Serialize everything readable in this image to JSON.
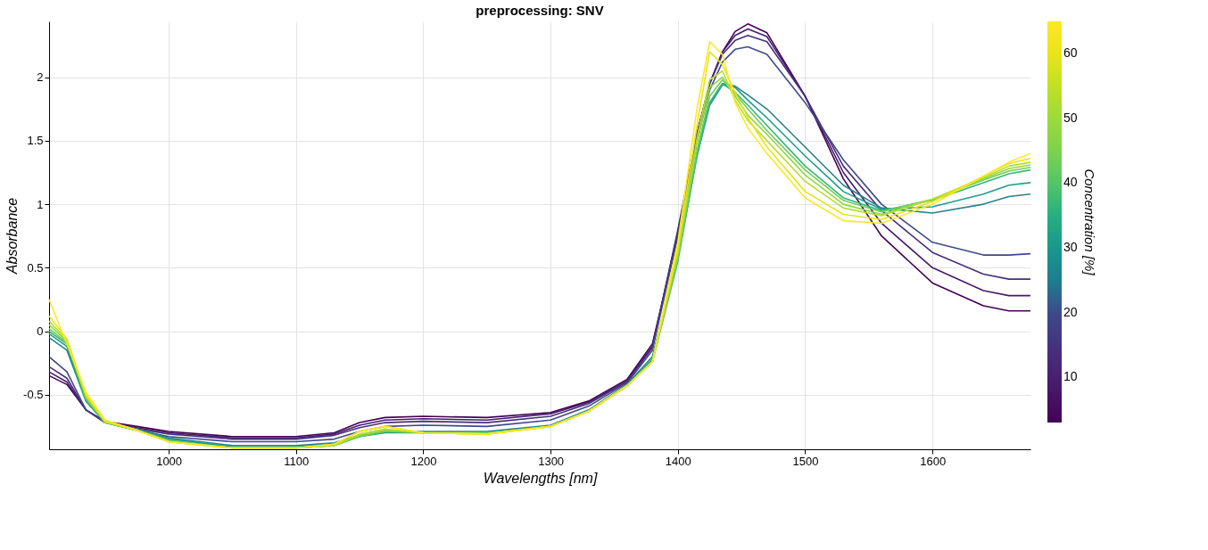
{
  "chart_data": {
    "type": "line",
    "title": "preprocessing: SNV",
    "xlabel": "Wavelengths [nm]",
    "ylabel": "Absorbance",
    "clabel": "Concentration [%]",
    "x": [
      906,
      920,
      935,
      950,
      975,
      1000,
      1050,
      1100,
      1130,
      1150,
      1170,
      1200,
      1250,
      1300,
      1330,
      1360,
      1380,
      1400,
      1415,
      1425,
      1435,
      1445,
      1455,
      1470,
      1500,
      1530,
      1560,
      1600,
      1640,
      1660,
      1677
    ],
    "xlim": [
      906,
      1677
    ],
    "xticks": [
      1000,
      1100,
      1200,
      1300,
      1400,
      1500,
      1600
    ],
    "ylim": [
      -0.93,
      2.44
    ],
    "yticks": [
      -0.5,
      0,
      0.5,
      1,
      1.5,
      2
    ],
    "clim": [
      3,
      65
    ],
    "cticks": [
      10,
      20,
      30,
      40,
      50,
      60
    ],
    "grid": true,
    "marker": "none",
    "line_style": "solid",
    "series": [
      {
        "color": "#440154",
        "values": [
          -0.35,
          -0.42,
          -0.62,
          -0.71,
          -0.75,
          -0.79,
          -0.83,
          -0.83,
          -0.8,
          -0.72,
          -0.68,
          -0.67,
          -0.68,
          -0.64,
          -0.55,
          -0.38,
          -0.1,
          0.75,
          1.55,
          1.95,
          2.2,
          2.36,
          2.42,
          2.35,
          1.85,
          1.2,
          0.75,
          0.38,
          0.2,
          0.16,
          0.16
        ]
      },
      {
        "color": "#481a6c",
        "values": [
          -0.32,
          -0.4,
          -0.62,
          -0.71,
          -0.76,
          -0.8,
          -0.84,
          -0.84,
          -0.81,
          -0.74,
          -0.7,
          -0.69,
          -0.7,
          -0.65,
          -0.56,
          -0.39,
          -0.12,
          0.78,
          1.55,
          1.95,
          2.2,
          2.33,
          2.38,
          2.32,
          1.85,
          1.25,
          0.85,
          0.5,
          0.32,
          0.28,
          0.28
        ]
      },
      {
        "color": "#472f7d",
        "values": [
          -0.28,
          -0.37,
          -0.62,
          -0.72,
          -0.77,
          -0.81,
          -0.85,
          -0.85,
          -0.82,
          -0.76,
          -0.72,
          -0.71,
          -0.72,
          -0.67,
          -0.57,
          -0.4,
          -0.13,
          0.8,
          1.55,
          1.95,
          2.18,
          2.29,
          2.33,
          2.28,
          1.85,
          1.3,
          0.95,
          0.62,
          0.45,
          0.41,
          0.41
        ]
      },
      {
        "color": "#3e4a89",
        "values": [
          -0.2,
          -0.32,
          -0.62,
          -0.72,
          -0.78,
          -0.83,
          -0.87,
          -0.87,
          -0.85,
          -0.79,
          -0.75,
          -0.74,
          -0.75,
          -0.7,
          -0.59,
          -0.41,
          -0.15,
          0.75,
          1.5,
          1.9,
          2.12,
          2.22,
          2.24,
          2.18,
          1.8,
          1.35,
          1.0,
          0.7,
          0.6,
          0.6,
          0.61
        ]
      },
      {
        "color": "#26828e",
        "values": [
          -0.05,
          -0.15,
          -0.55,
          -0.72,
          -0.77,
          -0.84,
          -0.9,
          -0.9,
          -0.88,
          -0.82,
          -0.79,
          -0.79,
          -0.79,
          -0.74,
          -0.62,
          -0.42,
          -0.2,
          0.6,
          1.4,
          1.8,
          1.95,
          1.93,
          1.86,
          1.75,
          1.45,
          1.15,
          0.97,
          0.93,
          1.0,
          1.06,
          1.08
        ]
      },
      {
        "color": "#1f9e89",
        "values": [
          -0.02,
          -0.12,
          -0.55,
          -0.72,
          -0.78,
          -0.85,
          -0.91,
          -0.91,
          -0.89,
          -0.83,
          -0.8,
          -0.8,
          -0.8,
          -0.75,
          -0.63,
          -0.43,
          -0.22,
          0.58,
          1.38,
          1.78,
          1.94,
          1.92,
          1.82,
          1.68,
          1.38,
          1.1,
          0.96,
          0.98,
          1.08,
          1.15,
          1.17
        ]
      },
      {
        "color": "#35b779",
        "values": [
          0.0,
          -0.1,
          -0.54,
          -0.72,
          -0.78,
          -0.86,
          -0.92,
          -0.92,
          -0.9,
          -0.83,
          -0.79,
          -0.8,
          -0.8,
          -0.75,
          -0.63,
          -0.43,
          -0.24,
          0.55,
          1.38,
          1.8,
          1.95,
          1.88,
          1.78,
          1.62,
          1.3,
          1.05,
          0.95,
          1.03,
          1.17,
          1.24,
          1.27
        ]
      },
      {
        "color": "#6ece58",
        "values": [
          0.02,
          -0.09,
          -0.53,
          -0.72,
          -0.78,
          -0.86,
          -0.92,
          -0.92,
          -0.9,
          -0.83,
          -0.79,
          -0.8,
          -0.8,
          -0.75,
          -0.63,
          -0.43,
          -0.24,
          0.57,
          1.42,
          1.85,
          1.98,
          1.87,
          1.75,
          1.58,
          1.27,
          1.03,
          0.94,
          1.04,
          1.19,
          1.26,
          1.29
        ]
      },
      {
        "color": "#90d743",
        "values": [
          0.05,
          -0.08,
          -0.52,
          -0.72,
          -0.78,
          -0.87,
          -0.92,
          -0.92,
          -0.9,
          -0.82,
          -0.78,
          -0.8,
          -0.81,
          -0.75,
          -0.63,
          -0.43,
          -0.24,
          0.6,
          1.48,
          1.92,
          2.0,
          1.85,
          1.7,
          1.55,
          1.23,
          1.0,
          0.92,
          1.04,
          1.2,
          1.28,
          1.31
        ]
      },
      {
        "color": "#b5de2b",
        "values": [
          0.08,
          -0.07,
          -0.51,
          -0.71,
          -0.78,
          -0.87,
          -0.92,
          -0.92,
          -0.9,
          -0.81,
          -0.77,
          -0.8,
          -0.81,
          -0.75,
          -0.63,
          -0.43,
          -0.24,
          0.62,
          1.52,
          1.98,
          2.05,
          1.82,
          1.66,
          1.5,
          1.18,
          0.97,
          0.91,
          1.04,
          1.21,
          1.3,
          1.33
        ]
      },
      {
        "color": "#e8e419",
        "values": [
          0.12,
          -0.06,
          -0.5,
          -0.71,
          -0.78,
          -0.87,
          -0.92,
          -0.92,
          -0.89,
          -0.79,
          -0.75,
          -0.8,
          -0.81,
          -0.75,
          -0.63,
          -0.43,
          -0.24,
          0.65,
          1.62,
          2.2,
          2.1,
          1.88,
          1.68,
          1.45,
          1.1,
          0.92,
          0.88,
          1.02,
          1.22,
          1.32,
          1.36
        ]
      },
      {
        "color": "#fde725",
        "values": [
          0.25,
          -0.1,
          -0.48,
          -0.7,
          -0.78,
          -0.87,
          -0.92,
          -0.92,
          -0.89,
          -0.79,
          -0.75,
          -0.8,
          -0.81,
          -0.75,
          -0.63,
          -0.43,
          -0.24,
          0.7,
          1.75,
          2.28,
          2.18,
          1.8,
          1.6,
          1.4,
          1.05,
          0.87,
          0.85,
          1.0,
          1.22,
          1.33,
          1.4
        ]
      }
    ]
  }
}
